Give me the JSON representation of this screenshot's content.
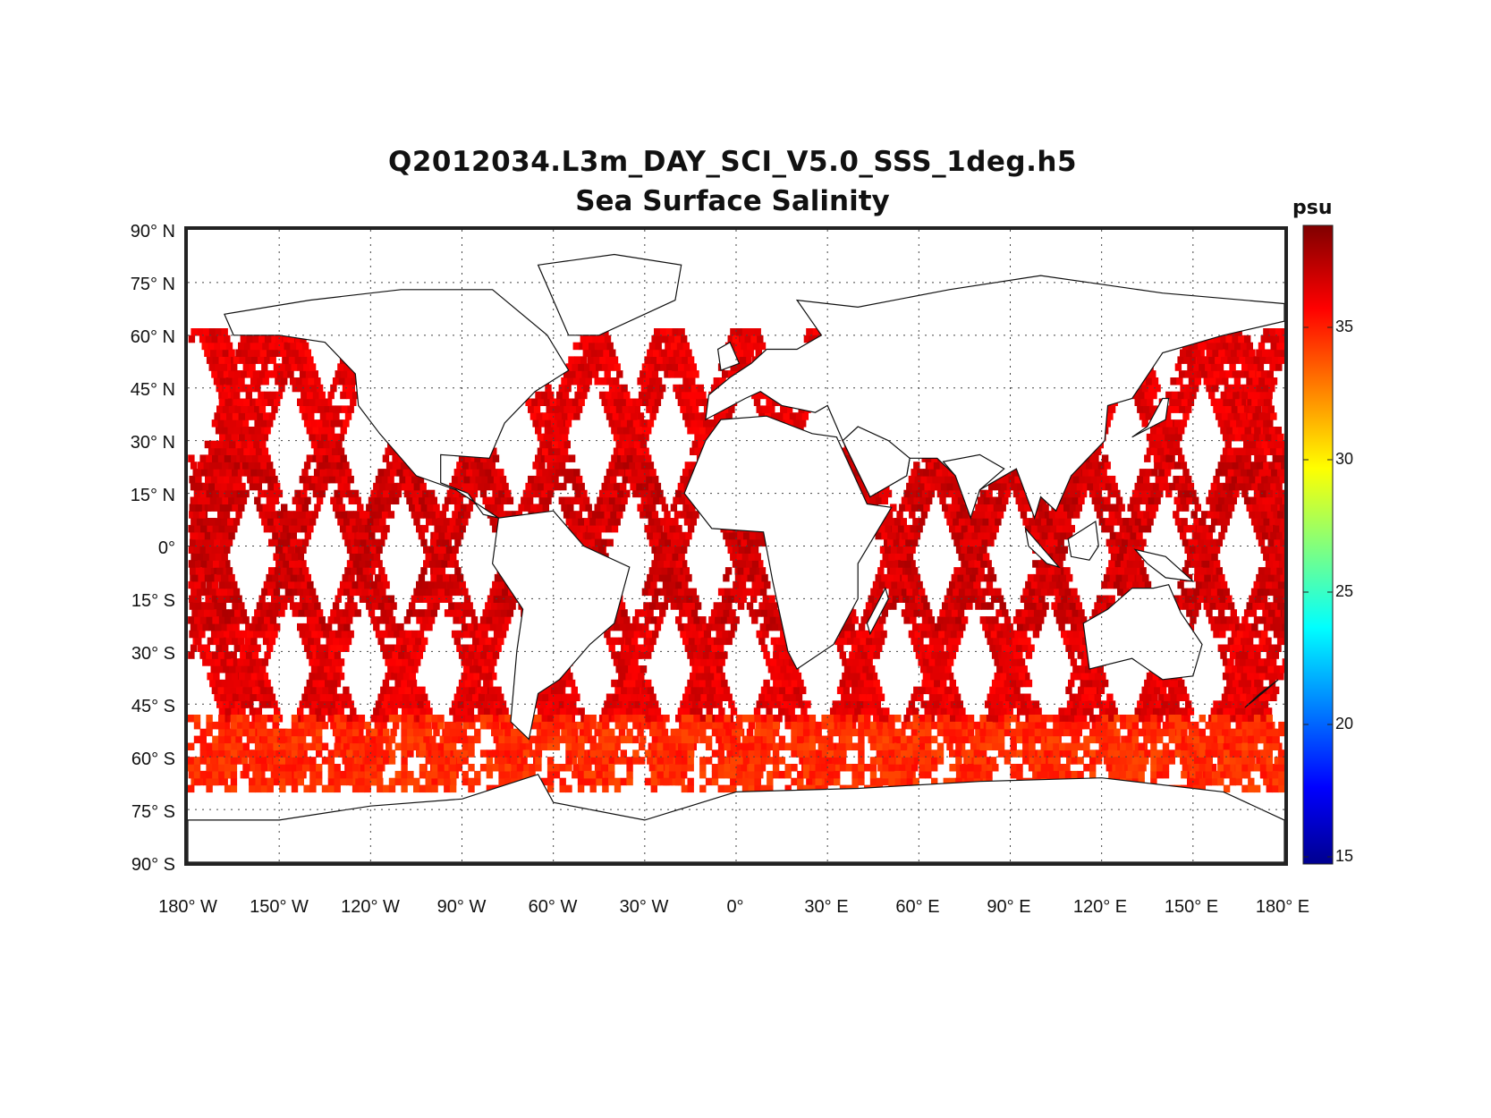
{
  "title": "Q2012034.L3m_DAY_SCI_V5.0_SSS_1deg.h5",
  "subtitle": "Sea Surface Salinity",
  "colorbar": {
    "unit": "psu",
    "ticks": [
      "35",
      "30",
      "25",
      "20",
      "15"
    ],
    "range": [
      14.5,
      38.5
    ],
    "colormap": "jet",
    "stops": [
      "#00008f",
      "#0000ff",
      "#00ffff",
      "#ffff00",
      "#ff0000",
      "#800000"
    ]
  },
  "lat_ticks": [
    "90° N",
    "75° N",
    "60° N",
    "45° N",
    "30° N",
    "15° N",
    "0°",
    "15° S",
    "30° S",
    "45° S",
    "60° S",
    "75° S",
    "90° S"
  ],
  "lon_ticks": [
    "180° W",
    "150° W",
    "120° W",
    "90° W",
    "60° W",
    "30° W",
    "0°",
    "30° E",
    "60° E",
    "90° E",
    "120° E",
    "150° E",
    "180° E"
  ],
  "map": {
    "projection": "equirectangular",
    "grid": "dotted",
    "coastlines": true,
    "background": "#ffffff",
    "data_description": "sampled along satellite swaths"
  }
}
